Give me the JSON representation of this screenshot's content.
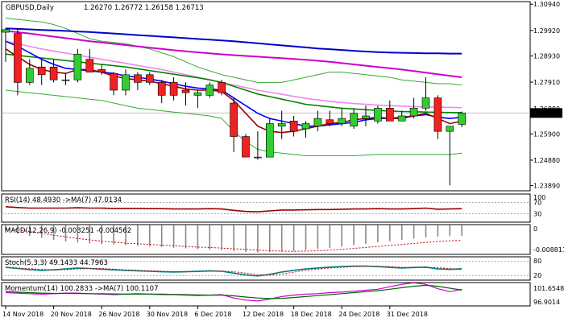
{
  "chart_data": {
    "type": "candlestick",
    "title": "GBPUSD,Daily",
    "ohlc_header": [
      "1.26270",
      "1.26772",
      "1.26158",
      "1.26713"
    ],
    "current_price_label": "1.26713",
    "y_ticks": [
      "1.30940",
      "1.29920",
      "1.28930",
      "1.27910",
      "1.26880",
      "1.25900",
      "1.24880",
      "1.23890"
    ],
    "ylim": [
      1.2369,
      1.3104
    ],
    "x_tick_labels": [
      "14 Nov 2018",
      "20 Nov 2018",
      "26 Nov 2018",
      "30 Nov 2018",
      "6 Dec 2018",
      "12 Dec 2018",
      "18 Dec 2018",
      "24 Dec 2018",
      "31 Dec 2018"
    ],
    "x_tick_bar_index": [
      0,
      4,
      8,
      12,
      16,
      20,
      24,
      28,
      32
    ],
    "candles": [
      {
        "o": 1.2985,
        "h": 1.3,
        "l": 1.287,
        "c": 1.2995
      },
      {
        "o": 1.298,
        "h": 1.3,
        "l": 1.274,
        "c": 1.279
      },
      {
        "o": 1.279,
        "h": 1.288,
        "l": 1.278,
        "c": 1.2845
      },
      {
        "o": 1.285,
        "h": 1.288,
        "l": 1.278,
        "c": 1.282
      },
      {
        "o": 1.285,
        "h": 1.288,
        "l": 1.279,
        "c": 1.28
      },
      {
        "o": 1.28,
        "h": 1.2825,
        "l": 1.278,
        "c": 1.28
      },
      {
        "o": 1.28,
        "h": 1.292,
        "l": 1.279,
        "c": 1.29
      },
      {
        "o": 1.288,
        "h": 1.292,
        "l": 1.283,
        "c": 1.283
      },
      {
        "o": 1.284,
        "h": 1.286,
        "l": 1.282,
        "c": 1.283
      },
      {
        "o": 1.2825,
        "h": 1.283,
        "l": 1.274,
        "c": 1.276
      },
      {
        "o": 1.276,
        "h": 1.284,
        "l": 1.274,
        "c": 1.282
      },
      {
        "o": 1.282,
        "h": 1.283,
        "l": 1.276,
        "c": 1.279
      },
      {
        "o": 1.282,
        "h": 1.283,
        "l": 1.278,
        "c": 1.279
      },
      {
        "o": 1.279,
        "h": 1.28,
        "l": 1.271,
        "c": 1.274
      },
      {
        "o": 1.279,
        "h": 1.281,
        "l": 1.272,
        "c": 1.274
      },
      {
        "o": 1.276,
        "h": 1.279,
        "l": 1.27,
        "c": 1.275
      },
      {
        "o": 1.274,
        "h": 1.276,
        "l": 1.269,
        "c": 1.275
      },
      {
        "o": 1.274,
        "h": 1.279,
        "l": 1.273,
        "c": 1.278
      },
      {
        "o": 1.279,
        "h": 1.28,
        "l": 1.274,
        "c": 1.275
      },
      {
        "o": 1.271,
        "h": 1.273,
        "l": 1.252,
        "c": 1.258
      },
      {
        "o": 1.258,
        "h": 1.259,
        "l": 1.25,
        "c": 1.25
      },
      {
        "o": 1.25,
        "h": 1.26,
        "l": 1.249,
        "c": 1.25
      },
      {
        "o": 1.25,
        "h": 1.265,
        "l": 1.25,
        "c": 1.263
      },
      {
        "o": 1.262,
        "h": 1.268,
        "l": 1.257,
        "c": 1.263
      },
      {
        "o": 1.264,
        "h": 1.266,
        "l": 1.258,
        "c": 1.26
      },
      {
        "o": 1.261,
        "h": 1.264,
        "l": 1.2575,
        "c": 1.263
      },
      {
        "o": 1.262,
        "h": 1.268,
        "l": 1.26,
        "c": 1.265
      },
      {
        "o": 1.2645,
        "h": 1.268,
        "l": 1.262,
        "c": 1.263
      },
      {
        "o": 1.263,
        "h": 1.269,
        "l": 1.262,
        "c": 1.265
      },
      {
        "o": 1.262,
        "h": 1.269,
        "l": 1.261,
        "c": 1.267
      },
      {
        "o": 1.265,
        "h": 1.27,
        "l": 1.262,
        "c": 1.266
      },
      {
        "o": 1.264,
        "h": 1.27,
        "l": 1.263,
        "c": 1.269
      },
      {
        "o": 1.269,
        "h": 1.272,
        "l": 1.264,
        "c": 1.264
      },
      {
        "o": 1.264,
        "h": 1.268,
        "l": 1.264,
        "c": 1.266
      },
      {
        "o": 1.266,
        "h": 1.273,
        "l": 1.265,
        "c": 1.269
      },
      {
        "o": 1.269,
        "h": 1.281,
        "l": 1.268,
        "c": 1.273
      },
      {
        "o": 1.273,
        "h": 1.274,
        "l": 1.257,
        "c": 1.26
      },
      {
        "o": 1.26,
        "h": 1.262,
        "l": 1.239,
        "c": 1.262
      },
      {
        "o": 1.2627,
        "h": 1.2677,
        "l": 1.2616,
        "c": 1.2671
      }
    ],
    "moving_averages": [
      {
        "color": "#0000cc",
        "values": [
          1.3,
          1.2998,
          1.2996,
          1.2994,
          1.2992,
          1.299,
          1.2988,
          1.2986,
          1.2983,
          1.298,
          1.2977,
          1.2974,
          1.2971,
          1.2968,
          1.2965,
          1.2962,
          1.2959,
          1.2956,
          1.2953,
          1.295,
          1.2946,
          1.2942,
          1.2938,
          1.2934,
          1.293,
          1.2926,
          1.2922,
          1.2919,
          1.2916,
          1.2913,
          1.291,
          1.2908,
          1.2906,
          1.2905,
          1.2904,
          1.2903,
          1.2903,
          1.2902,
          1.2902
        ]
      },
      {
        "color": "#cc00cc",
        "values": [
          1.299,
          1.2985,
          1.298,
          1.2974,
          1.2968,
          1.2962,
          1.2956,
          1.295,
          1.2945,
          1.294,
          1.2935,
          1.293,
          1.2925,
          1.292,
          1.2915,
          1.2911,
          1.2907,
          1.2903,
          1.2899,
          1.2896,
          1.2893,
          1.289,
          1.2887,
          1.2884,
          1.2881,
          1.2878,
          1.2874,
          1.287,
          1.2865,
          1.286,
          1.2855,
          1.285,
          1.2845,
          1.284,
          1.2834,
          1.2828,
          1.2822,
          1.2816,
          1.281
        ]
      },
      {
        "color": "#ee88ee",
        "values": [
          1.295,
          1.294,
          1.293,
          1.292,
          1.2912,
          1.2904,
          1.2896,
          1.2888,
          1.288,
          1.2872,
          1.2864,
          1.2856,
          1.2848,
          1.284,
          1.283,
          1.282,
          1.281,
          1.28,
          1.279,
          1.278,
          1.277,
          1.276,
          1.2752,
          1.2744,
          1.2736,
          1.2728,
          1.2722,
          1.2716,
          1.2712,
          1.2708,
          1.2705,
          1.2702,
          1.27,
          1.2698,
          1.2696,
          1.2695,
          1.2694,
          1.2693,
          1.2692
        ]
      },
      {
        "color": "#008800",
        "values": [
          1.29,
          1.2895,
          1.289,
          1.2885,
          1.288,
          1.2875,
          1.287,
          1.2865,
          1.286,
          1.2855,
          1.285,
          1.2843,
          1.2836,
          1.2829,
          1.2822,
          1.2815,
          1.2808,
          1.28,
          1.279,
          1.2775,
          1.276,
          1.2745,
          1.2735,
          1.2725,
          1.2715,
          1.2705,
          1.27,
          1.2695,
          1.269,
          1.2687,
          1.2684,
          1.2681,
          1.2679,
          1.2677,
          1.2676,
          1.2675,
          1.2674,
          1.2673,
          1.2673
        ]
      },
      {
        "color": "#0000ff",
        "values": [
          1.295,
          1.293,
          1.2905,
          1.288,
          1.286,
          1.2845,
          1.284,
          1.2835,
          1.283,
          1.2825,
          1.2815,
          1.281,
          1.2803,
          1.2795,
          1.2785,
          1.2775,
          1.2768,
          1.2765,
          1.276,
          1.273,
          1.27,
          1.267,
          1.265,
          1.264,
          1.263,
          1.262,
          1.262,
          1.2625,
          1.263,
          1.2635,
          1.2645,
          1.265,
          1.265,
          1.2655,
          1.266,
          1.2665,
          1.2655,
          1.265,
          1.2655
        ]
      },
      {
        "color": "#990000",
        "values": [
          1.292,
          1.289,
          1.286,
          1.284,
          1.283,
          1.2825,
          1.284,
          1.284,
          1.283,
          1.2815,
          1.2805,
          1.28,
          1.2795,
          1.2785,
          1.2775,
          1.2765,
          1.276,
          1.276,
          1.2755,
          1.272,
          1.267,
          1.262,
          1.26,
          1.2595,
          1.26,
          1.261,
          1.262,
          1.263,
          1.2635,
          1.2645,
          1.265,
          1.2655,
          1.265,
          1.265,
          1.266,
          1.267,
          1.265,
          1.263,
          1.264
        ]
      }
    ],
    "bollinger": {
      "color": "#33aa33",
      "upper": [
        1.304,
        1.3035,
        1.303,
        1.3025,
        1.3015,
        1.3,
        1.298,
        1.296,
        1.295,
        1.2945,
        1.294,
        1.293,
        1.292,
        1.2905,
        1.289,
        1.287,
        1.285,
        1.2835,
        1.282,
        1.281,
        1.28,
        1.279,
        1.279,
        1.279,
        1.28,
        1.281,
        1.282,
        1.283,
        1.283,
        1.2825,
        1.282,
        1.2815,
        1.281,
        1.28,
        1.2795,
        1.279,
        1.2785,
        1.2785,
        1.278
      ],
      "lower": [
        1.276,
        1.2755,
        1.275,
        1.2745,
        1.274,
        1.2735,
        1.273,
        1.2725,
        1.272,
        1.271,
        1.27,
        1.269,
        1.2685,
        1.268,
        1.2675,
        1.267,
        1.2665,
        1.266,
        1.265,
        1.26,
        1.256,
        1.253,
        1.252,
        1.2515,
        1.251,
        1.2505,
        1.2505,
        1.2505,
        1.2505,
        1.2505,
        1.2508,
        1.251,
        1.251,
        1.251,
        1.251,
        1.251,
        1.251,
        1.251,
        1.2515
      ]
    },
    "rsi": {
      "label": "RSI(14) 48.4930 ->MA(7) 47.0134",
      "levels": [
        "70",
        "30"
      ],
      "top_label": "100",
      "values": [
        55,
        52,
        50,
        50,
        50,
        50,
        51,
        50,
        50,
        49,
        49,
        49,
        48,
        48,
        47,
        47,
        47,
        48,
        47,
        42,
        38,
        37,
        40,
        43,
        43,
        44,
        45,
        45,
        46,
        47,
        47,
        48,
        47,
        47,
        48,
        50,
        46,
        47,
        48
      ]
    },
    "macd": {
      "label": "MACD(12,26,9) -0.003251 -0.004562",
      "right_top": "0",
      "right_bottom": "-0.008811",
      "histogram": [
        -0.0018,
        -0.0025,
        -0.0032,
        -0.0038,
        -0.0044,
        -0.0049,
        -0.0052,
        -0.0055,
        -0.0057,
        -0.0058,
        -0.006,
        -0.0062,
        -0.0064,
        -0.0066,
        -0.0068,
        -0.007,
        -0.0072,
        -0.0074,
        -0.0075,
        -0.0078,
        -0.0081,
        -0.0082,
        -0.0081,
        -0.008,
        -0.0078,
        -0.0075,
        -0.0072,
        -0.0068,
        -0.0064,
        -0.006,
        -0.0056,
        -0.0052,
        -0.0048,
        -0.0044,
        -0.004,
        -0.0037,
        -0.0034,
        -0.0033,
        -0.0032
      ],
      "signal": [
        -0.001,
        -0.0014,
        -0.0019,
        -0.0024,
        -0.003,
        -0.0035,
        -0.004,
        -0.0044,
        -0.0048,
        -0.0051,
        -0.0054,
        -0.0056,
        -0.0058,
        -0.006,
        -0.0062,
        -0.0064,
        -0.0066,
        -0.0067,
        -0.0069,
        -0.0071,
        -0.0073,
        -0.0075,
        -0.0077,
        -0.0078,
        -0.0079,
        -0.0078,
        -0.0077,
        -0.0075,
        -0.0073,
        -0.007,
        -0.0067,
        -0.0064,
        -0.0061,
        -0.0058,
        -0.0055,
        -0.0052,
        -0.0049,
        -0.0047,
        -0.0046
      ]
    },
    "stoch": {
      "label": "Stoch(5,3,3) 49.1433 44.7963",
      "right_top": "80",
      "right_bottom": "20",
      "main": [
        55,
        50,
        45,
        42,
        44,
        48,
        52,
        50,
        47,
        44,
        42,
        40,
        38,
        36,
        35,
        36,
        38,
        40,
        38,
        30,
        22,
        18,
        25,
        35,
        42,
        48,
        52,
        56,
        58,
        60,
        60,
        58,
        55,
        52,
        54,
        56,
        48,
        46,
        49
      ],
      "signal": [
        55,
        52,
        49,
        46,
        44,
        45,
        48,
        50,
        50,
        47,
        44,
        42,
        40,
        38,
        36,
        36,
        36,
        38,
        39,
        36,
        30,
        23,
        22,
        26,
        34,
        42,
        47,
        52,
        55,
        58,
        59,
        59,
        58,
        55,
        54,
        54,
        53,
        50,
        45
      ]
    },
    "momentum": {
      "label": "Momentum(14) 100.2833 ->MA(7) 100.1107",
      "right_top": "101.6548",
      "right_bottom": "96.9014",
      "main": [
        99.6,
        99.5,
        99.4,
        99.3,
        99.4,
        99.5,
        99.5,
        99.4,
        99.3,
        99.2,
        99.3,
        99.4,
        99.3,
        99.2,
        99.2,
        99.1,
        99.0,
        99.1,
        99.2,
        98.5,
        98.1,
        97.9,
        98.3,
        98.8,
        99.1,
        99.3,
        99.4,
        99.6,
        99.7,
        99.9,
        100.1,
        100.3,
        100.8,
        101.3,
        101.6,
        101.3,
        100.4,
        99.8,
        100.28
      ],
      "ma": [
        99.8,
        99.7,
        99.6,
        99.5,
        99.45,
        99.45,
        99.45,
        99.4,
        99.4,
        99.35,
        99.3,
        99.3,
        99.3,
        99.3,
        99.25,
        99.2,
        99.15,
        99.1,
        99.1,
        98.95,
        98.7,
        98.5,
        98.4,
        98.45,
        98.6,
        98.8,
        99.0,
        99.2,
        99.4,
        99.6,
        99.8,
        100.0,
        100.3,
        100.6,
        100.9,
        101.1,
        100.9,
        100.5,
        100.11
      ]
    }
  }
}
